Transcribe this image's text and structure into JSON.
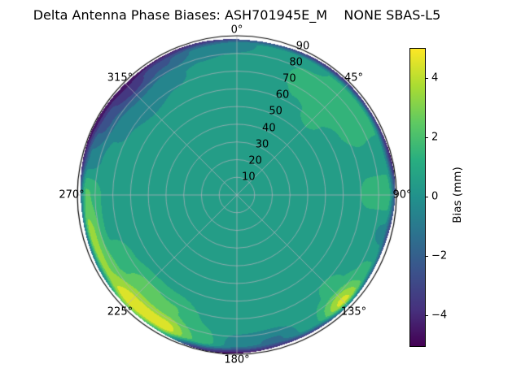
{
  "chart_data": {
    "type": "heatmap",
    "subtype": "polar_contour",
    "title": "Delta Antenna Phase Biases: ASH701945E_M    NONE SBAS-L5",
    "colorbar": {
      "label": "Bias (mm)",
      "ticks": [
        "4",
        "2",
        "0",
        "−2",
        "−4"
      ],
      "tick_values": [
        4,
        2,
        0,
        -2,
        -4
      ],
      "vmin": -5,
      "vmax": 5,
      "colormap": "viridis"
    },
    "angular_axis": {
      "tick_degrees": [
        0,
        45,
        90,
        135,
        180,
        225,
        270,
        315
      ],
      "tick_labels": [
        "0°",
        "45°",
        "90°",
        "135°",
        "180°",
        "225°",
        "270°",
        "315°"
      ],
      "direction": "clockwise",
      "zero_location": "top"
    },
    "radial_axis": {
      "tick_values": [
        10,
        20,
        30,
        40,
        50,
        60,
        70,
        80,
        90
      ],
      "tick_labels": [
        "10",
        "20",
        "30",
        "40",
        "50",
        "60",
        "70",
        "80",
        "90"
      ],
      "max": 90,
      "label_angle_deg": 22.5,
      "grid": true
    },
    "contour_level_step_mm": 1,
    "grid": {
      "azimuth_deg": [
        0,
        15,
        30,
        45,
        60,
        75,
        90,
        105,
        120,
        135,
        150,
        165,
        180,
        195,
        210,
        225,
        240,
        255,
        270,
        285,
        300,
        315,
        330,
        345
      ],
      "zenith_deg": [
        0,
        20,
        40,
        60,
        75,
        85,
        90
      ],
      "bias_mm": [
        [
          0.3,
          0.3,
          0.4,
          0.5,
          0.4,
          -0.3,
          -4.5
        ],
        [
          0.3,
          0.3,
          0.4,
          0.5,
          0.5,
          0.3,
          -4.5
        ],
        [
          0.3,
          0.3,
          0.5,
          0.9,
          1.4,
          0.8,
          -4.5
        ],
        [
          0.3,
          0.3,
          0.5,
          1.1,
          1.6,
          1.2,
          -4.3
        ],
        [
          0.3,
          0.4,
          0.5,
          0.8,
          1.3,
          1.4,
          -4.4
        ],
        [
          0.3,
          0.4,
          0.5,
          0.5,
          0.8,
          0.4,
          -4.5
        ],
        [
          0.3,
          0.4,
          0.5,
          0.5,
          1.2,
          1.7,
          -2.5
        ],
        [
          0.3,
          0.4,
          0.5,
          0.5,
          0.6,
          -0.3,
          -4.5
        ],
        [
          0.3,
          0.4,
          0.5,
          0.5,
          0.8,
          1.2,
          -4.3
        ],
        [
          0.3,
          0.4,
          0.5,
          0.6,
          1.2,
          4.4,
          -2.5
        ],
        [
          0.3,
          0.4,
          0.5,
          0.5,
          0.6,
          0.6,
          -4.4
        ],
        [
          0.3,
          0.4,
          0.4,
          0.4,
          0.3,
          -1.2,
          -4.6
        ],
        [
          0.3,
          0.4,
          0.4,
          0.4,
          0.3,
          -0.6,
          -4.6
        ],
        [
          0.3,
          0.4,
          0.4,
          0.5,
          1.0,
          1.8,
          -3.8
        ],
        [
          0.3,
          0.4,
          0.4,
          0.6,
          2.2,
          4.8,
          0.5
        ],
        [
          0.3,
          0.4,
          0.4,
          0.6,
          2.6,
          4.8,
          2.0
        ],
        [
          0.3,
          0.3,
          0.4,
          0.5,
          1.6,
          3.2,
          -2.0
        ],
        [
          0.3,
          0.3,
          0.4,
          0.5,
          0.8,
          3.4,
          -4.0
        ],
        [
          0.3,
          0.3,
          0.4,
          0.5,
          0.9,
          2.2,
          -3.8
        ],
        [
          0.3,
          0.3,
          0.4,
          0.4,
          0.3,
          -0.8,
          -4.6
        ],
        [
          0.3,
          0.3,
          0.4,
          0.4,
          -0.2,
          -2.6,
          -4.8
        ],
        [
          0.3,
          0.3,
          0.3,
          0.3,
          -0.8,
          -3.6,
          -4.8
        ],
        [
          0.3,
          0.3,
          0.4,
          0.4,
          -0.2,
          -2.2,
          -4.6
        ],
        [
          0.3,
          0.3,
          0.4,
          0.5,
          0.2,
          -0.8,
          -4.5
        ]
      ]
    },
    "colors": {
      "viridis_stops": [
        "#440154",
        "#46327e",
        "#3b528b",
        "#2c728e",
        "#21918c",
        "#28ae80",
        "#5ec962",
        "#aadc32",
        "#fde725"
      ],
      "grid_line": "#b2b2bc",
      "outline": "#000000",
      "background": "#ffffff"
    }
  }
}
